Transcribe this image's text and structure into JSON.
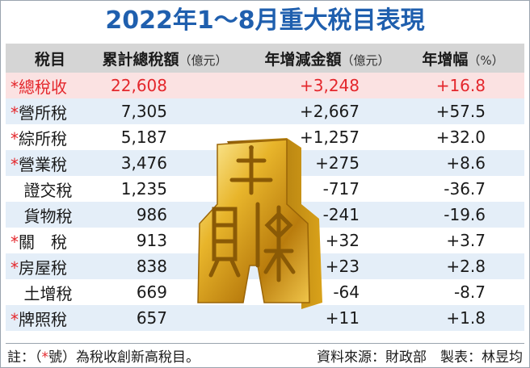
{
  "title": "2022年1～8月重大稅目表現",
  "header": {
    "col1": "稅目",
    "col2": "累計總稅額",
    "col2_unit": "（億元）",
    "col3": "年增減金額",
    "col3_unit": "（億元）",
    "col4": "年增幅",
    "col4_unit": "（%）"
  },
  "rows": [
    {
      "mark": "*",
      "name": "總稅收",
      "total": "22,608",
      "change": "+3,248",
      "pct": "+16.8"
    },
    {
      "mark": "*",
      "name": "營所稅",
      "total": "7,305",
      "change": "+2,667",
      "pct": "+57.5"
    },
    {
      "mark": "*",
      "name": "綜所稅",
      "total": "5,187",
      "change": "+1,257",
      "pct": "+32.0"
    },
    {
      "mark": "*",
      "name": "營業稅",
      "total": "3,476",
      "change": "+275",
      "pct": "+8.6"
    },
    {
      "mark": "",
      "name": "證交稅",
      "total": "1,235",
      "change": "-717",
      "pct": "-36.7"
    },
    {
      "mark": "",
      "name": "貨物稅",
      "total": "986",
      "change": "-241",
      "pct": "-19.6"
    },
    {
      "mark": "*",
      "name": "關　稅",
      "total": "913",
      "change": "+32",
      "pct": "+3.7"
    },
    {
      "mark": "*",
      "name": "房屋稅",
      "total": "838",
      "change": "+23",
      "pct": "+2.8"
    },
    {
      "mark": "",
      "name": "土增稅",
      "total": "669",
      "change": "-64",
      "pct": "-8.7"
    },
    {
      "mark": "*",
      "name": "牌照稅",
      "total": "657",
      "change": "+11",
      "pct": "+1.8"
    }
  ],
  "footer": {
    "note_prefix": "註：（",
    "note_star": "*",
    "note_suffix": "號）為稅收創新高稅目。",
    "credit": "資料來源：財政部　製表：林昱均"
  },
  "colors": {
    "title": "#1f5fae",
    "highlight": "#e4272c",
    "row_blue": "#e4eef8",
    "row_pink": "#fbe2e2",
    "header_gray": "#d5d5d5",
    "gold": "#d9a21a"
  },
  "emblem_icon": "gold-coin-emblem"
}
